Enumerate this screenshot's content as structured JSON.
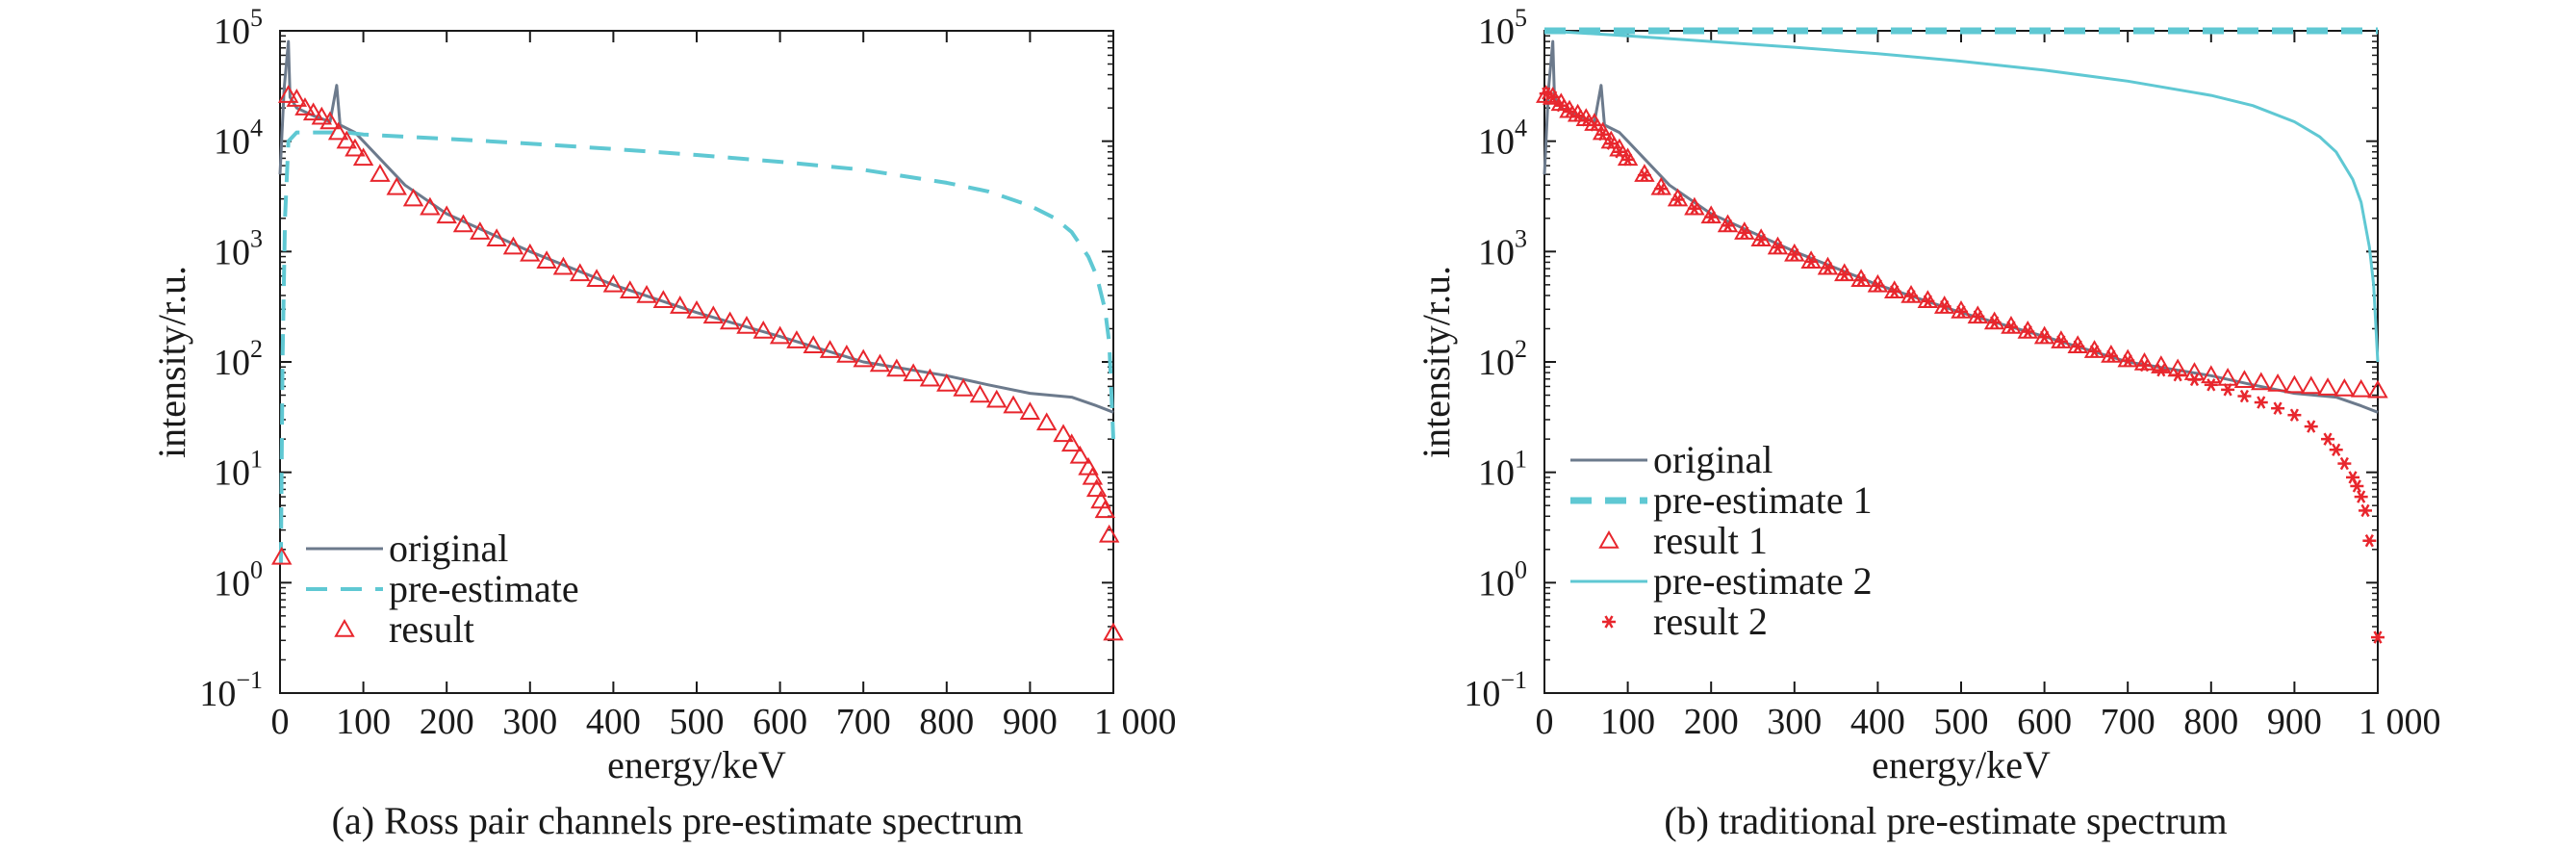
{
  "colors": {
    "original": "#6c7a8c",
    "preestimate": "#5fc8d3",
    "result": "#e8262d",
    "axis": "#1a1a1a"
  },
  "chart_data": [
    {
      "type": "line",
      "caption": "(a) Ross pair channels pre-estimate spectrum",
      "xlabel": "energy/keV",
      "ylabel": "intensity/r.u.",
      "xlim": [
        0,
        1000
      ],
      "ylim_log10": [
        -1,
        5
      ],
      "x_ticks": [
        0,
        100,
        200,
        300,
        400,
        500,
        600,
        700,
        800,
        900,
        1000
      ],
      "x_tick_labels": [
        "0",
        "100",
        "200",
        "300",
        "400",
        "500",
        "600",
        "700",
        "800",
        "900",
        "1 000"
      ],
      "y_ticks": [
        -1,
        0,
        1,
        2,
        3,
        4,
        5
      ],
      "y_tick_labels": [
        "10",
        "10",
        "10",
        "10",
        "10",
        "10",
        "10"
      ],
      "y_tick_exponents": [
        "−1",
        "0",
        "1",
        "2",
        "3",
        "4",
        "5"
      ],
      "yscale": "log",
      "grid": false,
      "legend_position": "bottom-left",
      "series": [
        {
          "name": "original",
          "style": "solid line",
          "color_key": "original",
          "x": [
            0,
            5,
            10,
            12,
            20,
            40,
            60,
            68,
            72,
            90,
            100,
            150,
            200,
            300,
            400,
            500,
            600,
            700,
            800,
            850,
            900,
            950,
            980,
            1000
          ],
          "y": [
            5000,
            30000,
            80000,
            25000,
            20000,
            17000,
            15000,
            32000,
            14000,
            12000,
            10000,
            4000,
            2200,
            1000,
            500,
            280,
            170,
            100,
            75,
            62,
            52,
            48,
            40,
            35
          ]
        },
        {
          "name": "pre-estimate",
          "style": "dashed line",
          "color_key": "preestimate",
          "x": [
            1,
            3,
            6,
            10,
            20,
            40,
            60,
            80,
            100,
            200,
            300,
            400,
            500,
            600,
            700,
            800,
            850,
            900,
            930,
            950,
            970,
            980,
            990,
            995,
            1000
          ],
          "y": [
            1.5,
            100,
            2000,
            10000,
            12000,
            12000,
            12000,
            12000,
            11500,
            10500,
            9500,
            8500,
            7500,
            6500,
            5500,
            4200,
            3500,
            2600,
            2000,
            1500,
            900,
            600,
            300,
            150,
            20
          ]
        },
        {
          "name": "result",
          "style": "open triangle markers",
          "color_key": "result",
          "x": [
            2,
            10,
            20,
            30,
            40,
            50,
            60,
            70,
            80,
            90,
            100,
            120,
            140,
            160,
            180,
            200,
            220,
            240,
            260,
            280,
            300,
            320,
            340,
            360,
            380,
            400,
            420,
            440,
            460,
            480,
            500,
            520,
            540,
            560,
            580,
            600,
            620,
            640,
            660,
            680,
            700,
            720,
            740,
            760,
            780,
            800,
            820,
            840,
            860,
            880,
            900,
            920,
            940,
            950,
            960,
            970,
            975,
            980,
            985,
            990,
            995,
            1000
          ],
          "y": [
            1.7,
            26000,
            24000,
            20000,
            18000,
            16500,
            15000,
            12000,
            10000,
            8500,
            7000,
            5000,
            3800,
            3000,
            2500,
            2100,
            1750,
            1500,
            1300,
            1100,
            950,
            820,
            720,
            630,
            560,
            500,
            440,
            400,
            360,
            320,
            290,
            260,
            230,
            210,
            190,
            170,
            155,
            140,
            127,
            115,
            105,
            95,
            86,
            78,
            70,
            63,
            57,
            50,
            45,
            40,
            35,
            28,
            22,
            18,
            14,
            11,
            9,
            7,
            5.5,
            4.5,
            2.7,
            0.35
          ]
        }
      ]
    },
    {
      "type": "line",
      "caption": "(b) traditional pre-estimate spectrum",
      "xlabel": "energy/keV",
      "ylabel": "intensity/r.u.",
      "xlim": [
        0,
        1000
      ],
      "ylim_log10": [
        -1,
        5
      ],
      "x_ticks": [
        0,
        100,
        200,
        300,
        400,
        500,
        600,
        700,
        800,
        900,
        1000
      ],
      "x_tick_labels": [
        "0",
        "100",
        "200",
        "300",
        "400",
        "500",
        "600",
        "700",
        "800",
        "900",
        "1 000"
      ],
      "y_ticks": [
        -1,
        0,
        1,
        2,
        3,
        4,
        5
      ],
      "y_tick_labels": [
        "10",
        "10",
        "10",
        "10",
        "10",
        "10",
        "10"
      ],
      "y_tick_exponents": [
        "−1",
        "0",
        "1",
        "2",
        "3",
        "4",
        "5"
      ],
      "yscale": "log",
      "grid": false,
      "legend_position": "bottom-left",
      "series": [
        {
          "name": "original",
          "style": "solid line",
          "color_key": "original",
          "x": [
            0,
            5,
            10,
            12,
            20,
            40,
            60,
            68,
            72,
            90,
            100,
            150,
            200,
            300,
            400,
            500,
            600,
            700,
            800,
            850,
            900,
            950,
            980,
            1000
          ],
          "y": [
            5000,
            30000,
            80000,
            25000,
            20000,
            17000,
            15000,
            32000,
            14000,
            12000,
            10000,
            4000,
            2200,
            1000,
            500,
            280,
            170,
            100,
            75,
            62,
            52,
            48,
            40,
            35
          ]
        },
        {
          "name": "pre-estimate 1",
          "style": "thick dashed line",
          "color_key": "preestimate",
          "x": [
            0,
            1000
          ],
          "y": [
            100000,
            100000
          ]
        },
        {
          "name": "result 1",
          "style": "open triangle markers",
          "color_key": "result",
          "x": [
            2,
            10,
            20,
            30,
            40,
            50,
            60,
            70,
            80,
            90,
            100,
            120,
            140,
            160,
            180,
            200,
            220,
            240,
            260,
            280,
            300,
            320,
            340,
            360,
            380,
            400,
            420,
            440,
            460,
            480,
            500,
            520,
            540,
            560,
            580,
            600,
            620,
            640,
            660,
            680,
            700,
            720,
            740,
            760,
            780,
            800,
            820,
            840,
            860,
            880,
            900,
            920,
            940,
            960,
            980,
            1000
          ],
          "y": [
            26000,
            25000,
            22000,
            19000,
            17500,
            16000,
            14500,
            12000,
            10000,
            8500,
            7000,
            5000,
            3800,
            3000,
            2500,
            2100,
            1750,
            1500,
            1300,
            1100,
            950,
            820,
            720,
            630,
            560,
            500,
            440,
            400,
            360,
            320,
            290,
            260,
            230,
            210,
            190,
            170,
            155,
            140,
            127,
            115,
            105,
            98,
            92,
            86,
            80,
            75,
            71,
            68,
            65,
            63,
            61,
            60,
            58,
            57,
            56,
            55
          ]
        },
        {
          "name": "pre-estimate 2",
          "style": "thin solid line",
          "color_key": "preestimate",
          "x": [
            0,
            100,
            200,
            300,
            400,
            500,
            600,
            700,
            800,
            850,
            900,
            930,
            950,
            970,
            980,
            990,
            995,
            1000
          ],
          "y": [
            100000,
            90000,
            80000,
            71000,
            62000,
            53000,
            44000,
            35000,
            26000,
            21000,
            15000,
            11000,
            8000,
            4500,
            2800,
            1100,
            500,
            100
          ]
        },
        {
          "name": "result 2",
          "style": "asterisk markers",
          "color_key": "result",
          "x": [
            2,
            10,
            20,
            30,
            40,
            50,
            60,
            70,
            80,
            90,
            100,
            120,
            140,
            160,
            180,
            200,
            220,
            240,
            260,
            280,
            300,
            320,
            340,
            360,
            380,
            400,
            420,
            440,
            460,
            480,
            500,
            520,
            540,
            560,
            580,
            600,
            620,
            640,
            660,
            680,
            700,
            720,
            740,
            760,
            780,
            800,
            820,
            840,
            860,
            880,
            900,
            920,
            940,
            950,
            960,
            970,
            975,
            980,
            985,
            990,
            1000
          ],
          "y": [
            27000,
            25000,
            21000,
            18500,
            17000,
            15500,
            14000,
            11500,
            9500,
            8000,
            6800,
            4900,
            3700,
            2950,
            2450,
            2050,
            1720,
            1480,
            1280,
            1090,
            940,
            810,
            710,
            620,
            550,
            490,
            435,
            395,
            355,
            318,
            285,
            258,
            228,
            207,
            188,
            168,
            153,
            138,
            125,
            113,
            103,
            93,
            84,
            76,
            69,
            62,
            56,
            49,
            43,
            38,
            33,
            26,
            20,
            16,
            12,
            9,
            7.5,
            6,
            4.5,
            2.4,
            0.32
          ]
        }
      ]
    }
  ]
}
